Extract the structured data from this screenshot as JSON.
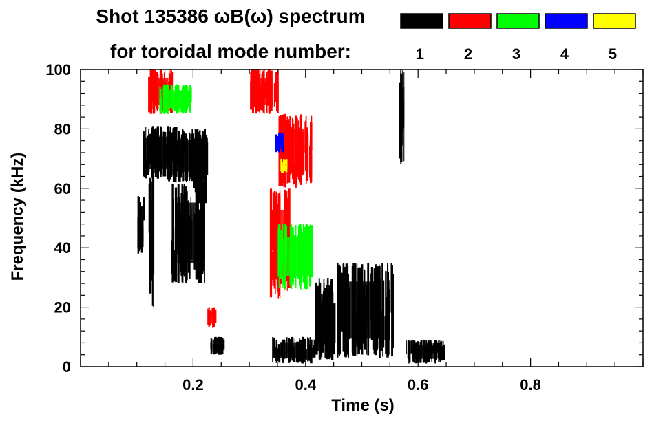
{
  "chart_data": {
    "type": "heatmap",
    "title_line1": "Shot 135386 ωB(ω) spectrum",
    "title_line2": "for toroidal mode number:",
    "xlabel": "Time (s)",
    "ylabel": "Frequency (kHz)",
    "xlim": [
      0.0,
      1.0
    ],
    "ylim": [
      0,
      100
    ],
    "x_ticks": [
      0.2,
      0.4,
      0.6,
      0.8
    ],
    "x_tick_labels": [
      "0.2",
      "0.4",
      "0.6",
      "0.8"
    ],
    "y_ticks": [
      0,
      20,
      40,
      60,
      80,
      100
    ],
    "y_tick_labels": [
      "0",
      "20",
      "40",
      "60",
      "80",
      "100"
    ],
    "legend": [
      {
        "n": "1",
        "color": "#000000"
      },
      {
        "n": "2",
        "color": "#ff0000"
      },
      {
        "n": "3",
        "color": "#00ff00"
      },
      {
        "n": "4",
        "color": "#0000ff"
      },
      {
        "n": "5",
        "color": "#ffff00"
      }
    ],
    "regions": [
      {
        "mode": 1,
        "t": [
          0.1,
          0.115
        ],
        "f": [
          38,
          58
        ]
      },
      {
        "mode": 1,
        "t": [
          0.11,
          0.17
        ],
        "f": [
          63,
          81
        ]
      },
      {
        "mode": 1,
        "t": [
          0.12,
          0.13
        ],
        "f": [
          20,
          65
        ]
      },
      {
        "mode": 1,
        "t": [
          0.15,
          0.225
        ],
        "f": [
          62,
          80
        ]
      },
      {
        "mode": 1,
        "t": [
          0.16,
          0.22
        ],
        "f": [
          28,
          62
        ]
      },
      {
        "mode": 1,
        "t": [
          0.2,
          0.225
        ],
        "f": [
          55,
          78
        ]
      },
      {
        "mode": 1,
        "t": [
          0.23,
          0.255
        ],
        "f": [
          4,
          10
        ]
      },
      {
        "mode": 1,
        "t": [
          0.34,
          0.415
        ],
        "f": [
          1,
          10
        ]
      },
      {
        "mode": 1,
        "t": [
          0.415,
          0.45
        ],
        "f": [
          2,
          30
        ]
      },
      {
        "mode": 1,
        "t": [
          0.455,
          0.555
        ],
        "f": [
          3,
          35
        ]
      },
      {
        "mode": 1,
        "t": [
          0.565,
          0.575
        ],
        "f": [
          68,
          100
        ]
      },
      {
        "mode": 1,
        "t": [
          0.575,
          0.645
        ],
        "f": [
          1,
          9
        ]
      },
      {
        "mode": 2,
        "t": [
          0.12,
          0.165
        ],
        "f": [
          85,
          100
        ]
      },
      {
        "mode": 2,
        "t": [
          0.225,
          0.24
        ],
        "f": [
          13,
          20
        ]
      },
      {
        "mode": 2,
        "t": [
          0.3,
          0.35
        ],
        "f": [
          85,
          100
        ]
      },
      {
        "mode": 2,
        "t": [
          0.335,
          0.37
        ],
        "f": [
          23,
          60
        ]
      },
      {
        "mode": 2,
        "t": [
          0.35,
          0.41
        ],
        "f": [
          60,
          85
        ]
      },
      {
        "mode": 3,
        "t": [
          0.14,
          0.195
        ],
        "f": [
          85,
          95
        ]
      },
      {
        "mode": 3,
        "t": [
          0.35,
          0.41
        ],
        "f": [
          26,
          48
        ]
      },
      {
        "mode": 4,
        "t": [
          0.345,
          0.36
        ],
        "f": [
          72,
          79
        ]
      },
      {
        "mode": 5,
        "t": [
          0.355,
          0.365
        ],
        "f": [
          65,
          70
        ]
      }
    ]
  }
}
